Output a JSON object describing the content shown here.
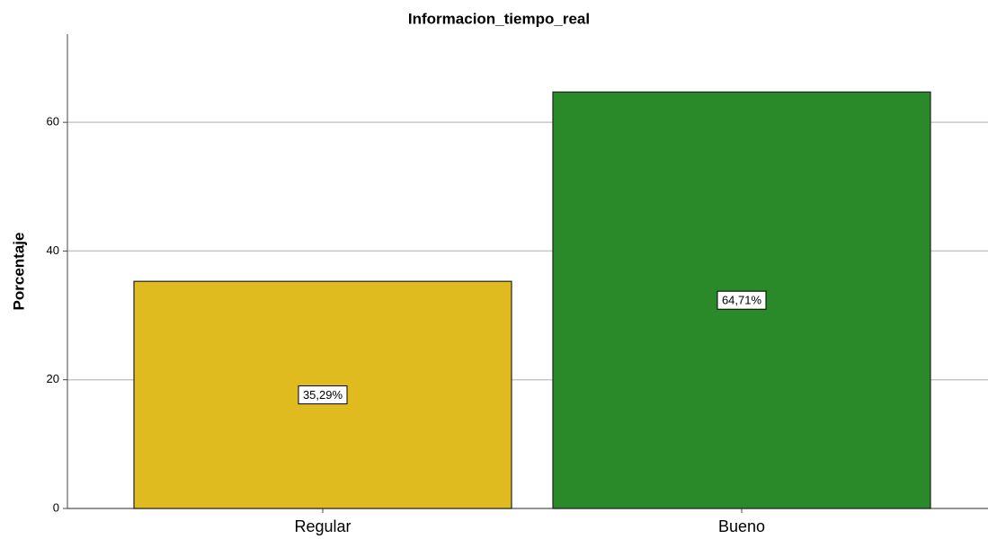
{
  "chart_data": {
    "type": "bar",
    "title": "Informacion_tiempo_real",
    "y_label": "Porcentaje",
    "categories": [
      "Regular",
      "Bueno"
    ],
    "values": [
      35.29,
      64.71
    ],
    "value_labels": [
      "35,29%",
      "64,71%"
    ],
    "colors": [
      "#e0bb1f",
      "#2a8a2a"
    ],
    "ylim": [
      0,
      73.7
    ],
    "yticks": [
      0,
      20,
      40,
      60
    ],
    "grid": true
  }
}
